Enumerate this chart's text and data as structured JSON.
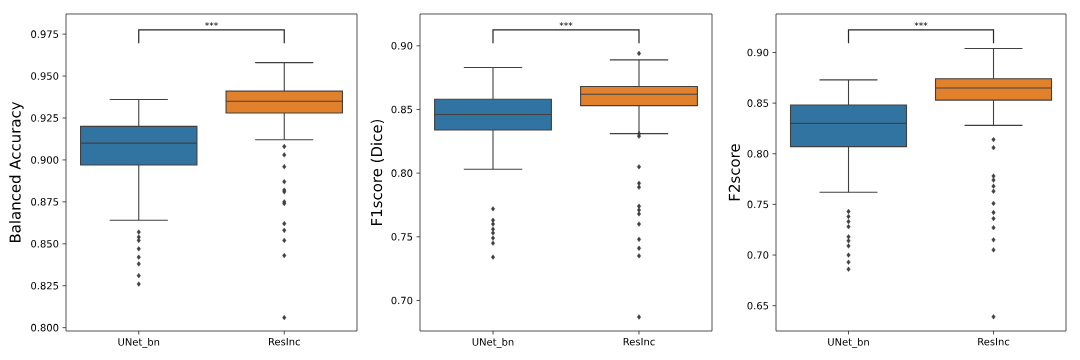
{
  "chart_data": [
    {
      "type": "box",
      "ylabel": "Balanced Accuracy",
      "categories": [
        "UNet_bn",
        "ResInc"
      ],
      "colors": [
        "#3274a1",
        "#e1812c"
      ],
      "marker": "diamond",
      "boxes": [
        {
          "low": 0.864,
          "q1": 0.897,
          "median": 0.91,
          "q3": 0.92,
          "high": 0.936,
          "outliers": [
            0.857,
            0.854,
            0.852,
            0.847,
            0.842,
            0.838,
            0.831,
            0.826
          ]
        },
        {
          "low": 0.912,
          "q1": 0.928,
          "median": 0.935,
          "q3": 0.941,
          "high": 0.958,
          "outliers": [
            0.908,
            0.903,
            0.896,
            0.887,
            0.882,
            0.881,
            0.875,
            0.874,
            0.862,
            0.858,
            0.852,
            0.843,
            0.806
          ]
        }
      ],
      "ylim": [
        0.798,
        0.987
      ],
      "yticks": [
        {
          "value": 0.8,
          "label": "0.800"
        },
        {
          "value": 0.825,
          "label": "0.825"
        },
        {
          "value": 0.85,
          "label": "0.850"
        },
        {
          "value": 0.875,
          "label": "0.875"
        },
        {
          "value": 0.9,
          "label": "0.900"
        },
        {
          "value": 0.925,
          "label": "0.925"
        },
        {
          "value": 0.95,
          "label": "0.950"
        },
        {
          "value": 0.975,
          "label": "0.975"
        }
      ],
      "annotations": [
        "***"
      ]
    },
    {
      "type": "box",
      "ylabel": "F1score (Dice)",
      "categories": [
        "UNet_bn",
        "ResInc"
      ],
      "colors": [
        "#3274a1",
        "#e1812c"
      ],
      "marker": "diamond",
      "boxes": [
        {
          "low": 0.803,
          "q1": 0.834,
          "median": 0.846,
          "q3": 0.858,
          "high": 0.883,
          "outliers": [
            0.772,
            0.763,
            0.76,
            0.756,
            0.753,
            0.749,
            0.745,
            0.734
          ]
        },
        {
          "low": 0.831,
          "q1": 0.853,
          "median": 0.862,
          "q3": 0.868,
          "high": 0.889,
          "outliers": [
            0.894,
            0.831,
            0.829,
            0.805,
            0.792,
            0.789,
            0.774,
            0.771,
            0.768,
            0.76,
            0.748,
            0.741,
            0.735,
            0.687
          ]
        }
      ],
      "ylim": [
        0.676,
        0.925
      ],
      "yticks": [
        {
          "value": 0.7,
          "label": "0.70"
        },
        {
          "value": 0.75,
          "label": "0.75"
        },
        {
          "value": 0.8,
          "label": "0.80"
        },
        {
          "value": 0.85,
          "label": "0.85"
        },
        {
          "value": 0.9,
          "label": "0.90"
        }
      ],
      "annotations": [
        "***"
      ]
    },
    {
      "type": "box",
      "ylabel": "F2score",
      "categories": [
        "UNet_bn",
        "ResInc"
      ],
      "colors": [
        "#3274a1",
        "#e1812c"
      ],
      "marker": "diamond",
      "boxes": [
        {
          "low": 0.762,
          "q1": 0.807,
          "median": 0.83,
          "q3": 0.848,
          "high": 0.873,
          "outliers": [
            0.743,
            0.738,
            0.733,
            0.728,
            0.718,
            0.714,
            0.709,
            0.7,
            0.693,
            0.686
          ]
        },
        {
          "low": 0.828,
          "q1": 0.853,
          "median": 0.865,
          "q3": 0.874,
          "high": 0.904,
          "outliers": [
            0.814,
            0.806,
            0.778,
            0.774,
            0.768,
            0.763,
            0.751,
            0.742,
            0.736,
            0.727,
            0.715,
            0.705,
            0.639
          ]
        }
      ],
      "ylim": [
        0.625,
        0.938
      ],
      "yticks": [
        {
          "value": 0.65,
          "label": "0.65"
        },
        {
          "value": 0.7,
          "label": "0.70"
        },
        {
          "value": 0.75,
          "label": "0.75"
        },
        {
          "value": 0.8,
          "label": "0.80"
        },
        {
          "value": 0.85,
          "label": "0.85"
        },
        {
          "value": 0.9,
          "label": "0.90"
        }
      ],
      "annotations": [
        "***"
      ]
    }
  ]
}
